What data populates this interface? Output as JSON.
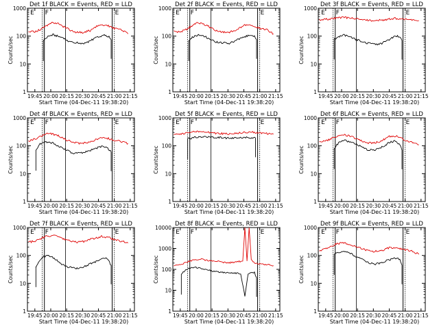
{
  "colors": {
    "background": "#ffffff",
    "axes": "#000000",
    "events_series": "#000000",
    "lld_series": "#e00000"
  },
  "chart_data": [
    {
      "type": "line",
      "title": "Det 1f BLACK = Events, RED = LLD",
      "xlabel": "Start Time (04-Dec-11 19:38:20)",
      "ylabel": "Counts/sec",
      "yscale": "log",
      "ylim": [
        1,
        1000
      ],
      "yticks": [
        "1",
        "10",
        "100",
        "1000"
      ],
      "xticks": [
        "19:45",
        "20:00",
        "20:15",
        "20:30",
        "20:45",
        "21:00",
        "21:15"
      ],
      "markers": [
        "E",
        "F",
        "E"
      ],
      "series": [
        {
          "name": "Events",
          "x": [
            "19:53",
            "19:58",
            "20:02",
            "20:10",
            "20:18",
            "20:25",
            "20:32",
            "20:38",
            "20:45",
            "20:49",
            "20:52",
            "20:55",
            "20:57"
          ],
          "values": [
            70,
            100,
            112,
            90,
            63,
            57,
            55,
            70,
            95,
            105,
            105,
            95,
            75
          ]
        },
        {
          "name": "LLD",
          "x": [
            "19:39",
            "19:45",
            "19:52",
            "20:00",
            "20:07",
            "20:15",
            "20:22",
            "20:30",
            "20:38",
            "20:45",
            "20:52",
            "21:00",
            "21:07",
            "21:13"
          ],
          "values": [
            150,
            140,
            185,
            300,
            275,
            190,
            140,
            135,
            160,
            250,
            255,
            190,
            170,
            120
          ]
        }
      ]
    },
    {
      "type": "line",
      "title": "Det 2f BLACK = Events, RED = LLD",
      "xlabel": "Start Time (04-Dec-11 19:38:20)",
      "ylabel": "Counts/sec",
      "yscale": "log",
      "ylim": [
        1,
        1000
      ],
      "yticks": [
        "1",
        "10",
        "100",
        "1000"
      ],
      "xticks": [
        "19:45",
        "20:00",
        "20:15",
        "20:30",
        "20:45",
        "21:00",
        "21:15"
      ],
      "markers": [
        "E",
        "F",
        "E"
      ],
      "series": [
        {
          "name": "Events",
          "x": [
            "19:53",
            "19:58",
            "20:02",
            "20:10",
            "20:18",
            "20:25",
            "20:32",
            "20:38",
            "20:45",
            "20:49",
            "20:52",
            "20:55",
            "20:57"
          ],
          "values": [
            70,
            100,
            112,
            90,
            63,
            57,
            55,
            70,
            95,
            105,
            105,
            95,
            75
          ]
        },
        {
          "name": "LLD",
          "x": [
            "19:39",
            "19:45",
            "19:52",
            "20:00",
            "20:07",
            "20:15",
            "20:22",
            "20:30",
            "20:38",
            "20:45",
            "20:52",
            "21:00",
            "21:07",
            "21:13"
          ],
          "values": [
            150,
            140,
            185,
            300,
            275,
            190,
            140,
            135,
            160,
            250,
            255,
            190,
            170,
            120
          ]
        }
      ]
    },
    {
      "type": "line",
      "title": "Det 3f BLACK = Events, RED = LLD",
      "xlabel": "Start Time (04-Dec-11 19:38:20)",
      "ylabel": "Counts/sec",
      "yscale": "log",
      "ylim": [
        1,
        1000
      ],
      "yticks": [
        "1",
        "10",
        "100",
        "1000"
      ],
      "xticks": [
        "19:45",
        "20:00",
        "20:15",
        "20:30",
        "20:45",
        "21:00",
        "21:15"
      ],
      "markers": [
        "E",
        "F",
        "E"
      ],
      "series": [
        {
          "name": "Events",
          "x": [
            "19:53",
            "19:58",
            "20:02",
            "20:10",
            "20:18",
            "20:25",
            "20:32",
            "20:38",
            "20:45",
            "20:49",
            "20:52",
            "20:55",
            "20:57"
          ],
          "values": [
            80,
            95,
            110,
            88,
            65,
            55,
            50,
            55,
            75,
            95,
            100,
            95,
            70
          ]
        },
        {
          "name": "LLD",
          "x": [
            "19:39",
            "19:50",
            "20:00",
            "20:10",
            "20:20",
            "20:30",
            "20:40",
            "20:50",
            "21:00",
            "21:13"
          ],
          "values": [
            380,
            420,
            470,
            440,
            380,
            360,
            380,
            430,
            400,
            360
          ]
        }
      ]
    },
    {
      "type": "line",
      "title": "Det 4f BLACK = Events, RED = LLD",
      "xlabel": "Start Time (04-Dec-11 19:38:20)",
      "ylabel": "Counts/sec",
      "yscale": "log",
      "ylim": [
        1,
        1000
      ],
      "yticks": [
        "1",
        "10",
        "100",
        "1000"
      ],
      "xticks": [
        "19:45",
        "20:00",
        "20:15",
        "20:30",
        "20:45",
        "21:00",
        "21:15"
      ],
      "markers": [
        "E",
        "F",
        "E"
      ],
      "series": [
        {
          "name": "Events",
          "x": [
            "19:46",
            "19:50",
            "19:58",
            "20:05",
            "20:12",
            "20:20",
            "20:28",
            "20:35",
            "20:42",
            "20:48",
            "20:53",
            "20:57"
          ],
          "values": [
            70,
            120,
            140,
            110,
            80,
            55,
            55,
            65,
            80,
            95,
            90,
            60
          ]
        },
        {
          "name": "LLD",
          "x": [
            "19:39",
            "19:47",
            "19:55",
            "20:00",
            "20:08",
            "20:15",
            "20:22",
            "20:30",
            "20:38",
            "20:45",
            "20:52",
            "21:00",
            "21:07",
            "21:13"
          ],
          "values": [
            150,
            185,
            260,
            280,
            220,
            160,
            130,
            120,
            140,
            180,
            190,
            160,
            140,
            120
          ]
        }
      ]
    },
    {
      "type": "line",
      "title": "Det 5f BLACK = Events, RED = LLD",
      "xlabel": "Start Time (04-Dec-11 19:38:20)",
      "ylabel": "Counts/sec",
      "yscale": "log",
      "ylim": [
        1,
        1000
      ],
      "yticks": [
        "1",
        "10",
        "100",
        "1000"
      ],
      "xticks": [
        "19:45",
        "20:00",
        "20:15",
        "20:30",
        "20:45",
        "21:00",
        "21:15"
      ],
      "markers": [
        "E",
        "F",
        "E"
      ],
      "series": [
        {
          "name": "Events",
          "x": [
            "19:52",
            "20:00",
            "20:10",
            "20:20",
            "20:30",
            "20:40",
            "20:50",
            "20:56"
          ],
          "values": [
            180,
            200,
            210,
            200,
            190,
            195,
            200,
            190
          ]
        },
        {
          "name": "LLD",
          "x": [
            "19:39",
            "19:50",
            "20:00",
            "20:10",
            "20:20",
            "20:30",
            "20:40",
            "20:50",
            "21:00",
            "21:13"
          ],
          "values": [
            260,
            280,
            330,
            310,
            280,
            270,
            290,
            310,
            290,
            260
          ]
        }
      ]
    },
    {
      "type": "line",
      "title": "Det 6f BLACK = Events, RED = LLD",
      "xlabel": "Start Time (04-Dec-11 19:38:20)",
      "ylabel": "Counts/sec",
      "yscale": "log",
      "ylim": [
        1,
        1000
      ],
      "yticks": [
        "1",
        "10",
        "100",
        "1000"
      ],
      "xticks": [
        "19:45",
        "20:00",
        "20:15",
        "20:30",
        "20:45",
        "21:00",
        "21:15"
      ],
      "markers": [
        "E",
        "F",
        "E"
      ],
      "series": [
        {
          "name": "Events",
          "x": [
            "19:53",
            "19:58",
            "20:03",
            "20:10",
            "20:18",
            "20:25",
            "20:32",
            "20:38",
            "20:45",
            "20:50",
            "20:55",
            "20:57"
          ],
          "values": [
            80,
            140,
            160,
            130,
            95,
            70,
            70,
            90,
            130,
            145,
            110,
            70
          ]
        },
        {
          "name": "LLD",
          "x": [
            "19:39",
            "19:47",
            "19:55",
            "20:02",
            "20:08",
            "20:15",
            "20:22",
            "20:30",
            "20:38",
            "20:45",
            "20:52",
            "21:00",
            "21:07",
            "21:13"
          ],
          "values": [
            130,
            160,
            220,
            250,
            220,
            170,
            130,
            125,
            150,
            220,
            220,
            160,
            130,
            110
          ]
        }
      ]
    },
    {
      "type": "line",
      "title": "Det 7f BLACK = Events, RED = LLD",
      "xlabel": "Start Time (04-Dec-11 19:38:20)",
      "ylabel": "Counts/sec",
      "yscale": "log",
      "ylim": [
        1,
        1000
      ],
      "yticks": [
        "1",
        "10",
        "100",
        "1000"
      ],
      "xticks": [
        "19:45",
        "20:00",
        "20:15",
        "20:30",
        "20:45",
        "21:00",
        "21:15"
      ],
      "markers": [
        "E",
        "F",
        "E"
      ],
      "series": [
        {
          "name": "Events",
          "x": [
            "19:46",
            "19:52",
            "19:58",
            "20:05",
            "20:12",
            "20:20",
            "20:28",
            "20:35",
            "20:42",
            "20:48",
            "20:53",
            "20:57"
          ],
          "values": [
            40,
            90,
            100,
            70,
            45,
            35,
            35,
            45,
            60,
            75,
            80,
            45
          ]
        },
        {
          "name": "LLD",
          "x": [
            "19:39",
            "19:46",
            "19:55",
            "20:02",
            "20:10",
            "20:18",
            "20:25",
            "20:32",
            "20:40",
            "20:48",
            "20:55",
            "21:02",
            "21:08",
            "21:13"
          ],
          "values": [
            300,
            330,
            480,
            520,
            430,
            330,
            300,
            320,
            400,
            480,
            440,
            350,
            320,
            280
          ]
        }
      ]
    },
    {
      "type": "line",
      "title": "Det 8f BLACK = Events, RED = LLD",
      "xlabel": "Start Time (04-Dec-11 19:38:20)",
      "ylabel": "Counts/sec",
      "yscale": "log",
      "ylim": [
        1,
        10000
      ],
      "yticks": [
        "1",
        "10",
        "100",
        "1000",
        "10000"
      ],
      "xticks": [
        "19:45",
        "20:00",
        "20:15",
        "20:30",
        "20:45",
        "21:00",
        "21:15"
      ],
      "markers": [
        "E",
        "F",
        "E"
      ],
      "series": [
        {
          "name": "Events",
          "x": [
            "19:46",
            "19:52",
            "19:58",
            "20:05",
            "20:12",
            "20:20",
            "20:28",
            "20:35",
            "20:42",
            "20:46",
            "20:49",
            "20:52",
            "20:55",
            "20:57"
          ],
          "values": [
            60,
            110,
            130,
            110,
            90,
            75,
            70,
            70,
            60,
            5,
            60,
            70,
            70,
            40
          ]
        },
        {
          "name": "LLD",
          "x": [
            "19:39",
            "19:46",
            "19:52",
            "19:58",
            "20:05",
            "20:12",
            "20:18",
            "20:25",
            "20:32",
            "20:38",
            "20:44",
            "20:46",
            "20:48",
            "20:50",
            "20:52",
            "20:55",
            "21:00",
            "21:07",
            "21:13"
          ],
          "values": [
            150,
            170,
            230,
            280,
            300,
            260,
            250,
            220,
            210,
            230,
            250,
            10000,
            250,
            10000,
            280,
            200,
            180,
            170,
            150
          ]
        }
      ]
    },
    {
      "type": "line",
      "title": "Det 9f BLACK = Events, RED = LLD",
      "xlabel": "Start Time (04-Dec-11 19:38:20)",
      "ylabel": "Counts/sec",
      "yscale": "log",
      "ylim": [
        1,
        1000
      ],
      "yticks": [
        "1",
        "10",
        "100",
        "1000"
      ],
      "xticks": [
        "19:45",
        "20:00",
        "20:15",
        "20:30",
        "20:45",
        "21:00",
        "21:15"
      ],
      "markers": [
        "E",
        "F",
        "E"
      ],
      "series": [
        {
          "name": "Events",
          "x": [
            "19:53",
            "19:58",
            "20:03",
            "20:10",
            "20:18",
            "20:25",
            "20:32",
            "20:38",
            "20:45",
            "20:50",
            "20:55",
            "20:57"
          ],
          "values": [
            110,
            130,
            140,
            110,
            75,
            55,
            50,
            55,
            70,
            80,
            75,
            45
          ]
        },
        {
          "name": "LLD",
          "x": [
            "19:39",
            "19:47",
            "19:55",
            "20:02",
            "20:08",
            "20:15",
            "20:22",
            "20:30",
            "20:38",
            "20:45",
            "20:52",
            "21:00",
            "21:07",
            "21:13"
          ],
          "values": [
            150,
            180,
            260,
            280,
            250,
            200,
            160,
            140,
            150,
            190,
            190,
            160,
            140,
            110
          ]
        }
      ]
    }
  ]
}
